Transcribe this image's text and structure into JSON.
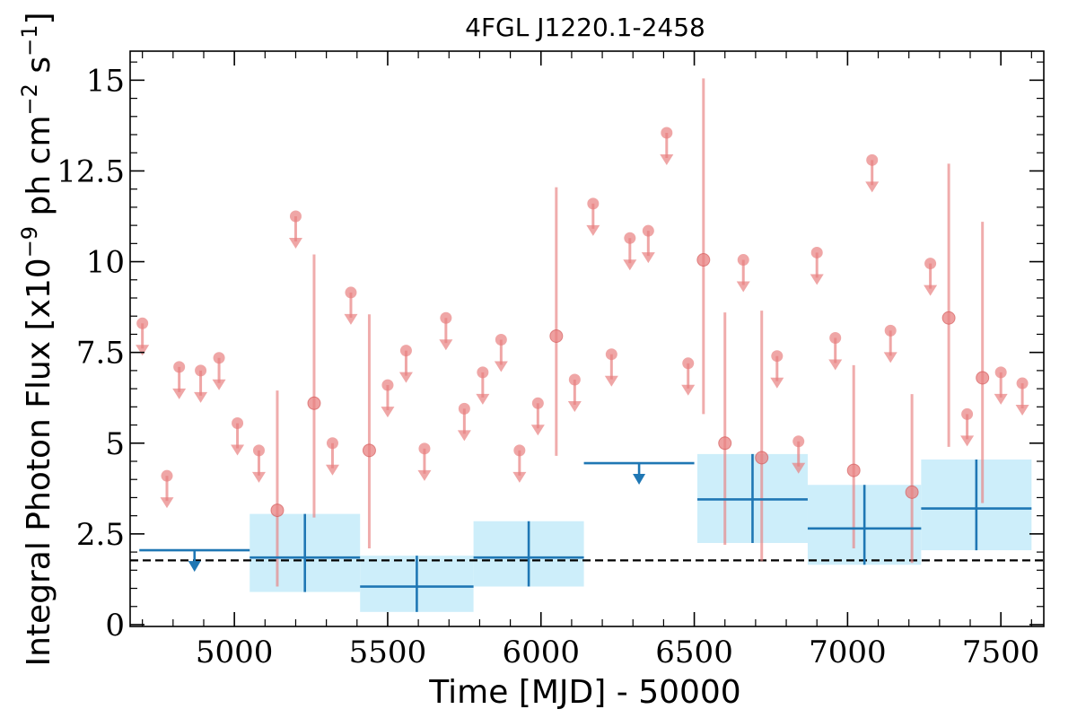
{
  "chart_data": {
    "type": "scatter",
    "title": "4FGL J1220.1-2458",
    "xlabel": "Time [MJD] - 50000",
    "ylabel_parts": {
      "main": "Integral Photon Flux [x10",
      "exp1": "−9",
      "mid": " ph cm",
      "exp2": "−2",
      "mid2": " s",
      "exp3": "−1",
      "end": "]"
    },
    "xlim": [
      4660,
      7640
    ],
    "ylim": [
      -0.05,
      15.8
    ],
    "xticks": [
      5000,
      5500,
      6000,
      6500,
      7000,
      7500
    ],
    "xtick_labels": [
      "5000",
      "5500",
      "6000",
      "6500",
      "7000",
      "7500"
    ],
    "yticks": [
      0,
      2.5,
      5,
      7.5,
      10,
      12.5,
      15
    ],
    "ytick_labels": [
      "0",
      "2.5",
      "5",
      "7.5",
      "10",
      "12.5",
      "15"
    ],
    "mean_flux": 1.77,
    "colors": {
      "monthly": "#e88080",
      "yearly": "#1f77b4",
      "band": "#cdeefa",
      "mean": "#000000"
    },
    "monthly_upper_limits": [
      [
        4700,
        8.3
      ],
      [
        4780,
        4.1
      ],
      [
        4820,
        7.1
      ],
      [
        4890,
        7.0
      ],
      [
        4950,
        7.35
      ],
      [
        5010,
        5.55
      ],
      [
        5080,
        4.8
      ],
      [
        5200,
        11.25
      ],
      [
        5320,
        5.0
      ],
      [
        5380,
        9.15
      ],
      [
        5500,
        6.6
      ],
      [
        5560,
        7.55
      ],
      [
        5620,
        4.85
      ],
      [
        5690,
        8.45
      ],
      [
        5750,
        5.95
      ],
      [
        5810,
        6.95
      ],
      [
        5870,
        7.85
      ],
      [
        5930,
        4.8
      ],
      [
        5990,
        6.1
      ],
      [
        6110,
        6.75
      ],
      [
        6170,
        11.6
      ],
      [
        6230,
        7.45
      ],
      [
        6290,
        10.65
      ],
      [
        6350,
        10.85
      ],
      [
        6410,
        13.55
      ],
      [
        6480,
        7.2
      ],
      [
        6660,
        10.05
      ],
      [
        6770,
        7.4
      ],
      [
        6840,
        5.05
      ],
      [
        6900,
        10.25
      ],
      [
        6960,
        7.9
      ],
      [
        7080,
        12.8
      ],
      [
        7140,
        8.1
      ],
      [
        7270,
        9.95
      ],
      [
        7390,
        5.8
      ],
      [
        7500,
        6.95
      ],
      [
        7570,
        6.65
      ]
    ],
    "monthly_detections": [
      [
        5140,
        3.15,
        1.05,
        6.45
      ],
      [
        5260,
        6.1,
        2.95,
        10.2
      ],
      [
        5440,
        4.8,
        2.1,
        8.55
      ],
      [
        6050,
        7.95,
        4.65,
        12.05
      ],
      [
        6530,
        10.05,
        5.8,
        15.05
      ],
      [
        6600,
        5.0,
        2.2,
        8.6
      ],
      [
        6720,
        4.6,
        1.75,
        8.65
      ],
      [
        7020,
        4.25,
        2.1,
        7.15
      ],
      [
        7210,
        3.65,
        1.7,
        6.35
      ],
      [
        7330,
        8.45,
        4.9,
        12.7
      ],
      [
        7440,
        6.8,
        3.35,
        11.1
      ]
    ],
    "yearly_upper_limits": [
      [
        4690,
        5050,
        2.05,
        4870
      ],
      [
        6140,
        6500,
        4.45,
        6320
      ]
    ],
    "yearly_detections": [
      [
        5050,
        5410,
        5230,
        1.85,
        0.9,
        3.05
      ],
      [
        5410,
        5780,
        5595,
        1.05,
        0.35,
        1.9
      ],
      [
        5780,
        6140,
        5960,
        1.85,
        1.05,
        2.85
      ],
      [
        6510,
        6870,
        6690,
        3.45,
        2.25,
        4.7
      ],
      [
        6870,
        7240,
        7055,
        2.65,
        1.65,
        3.85
      ],
      [
        7240,
        7600,
        7420,
        3.2,
        2.05,
        4.55
      ]
    ]
  }
}
